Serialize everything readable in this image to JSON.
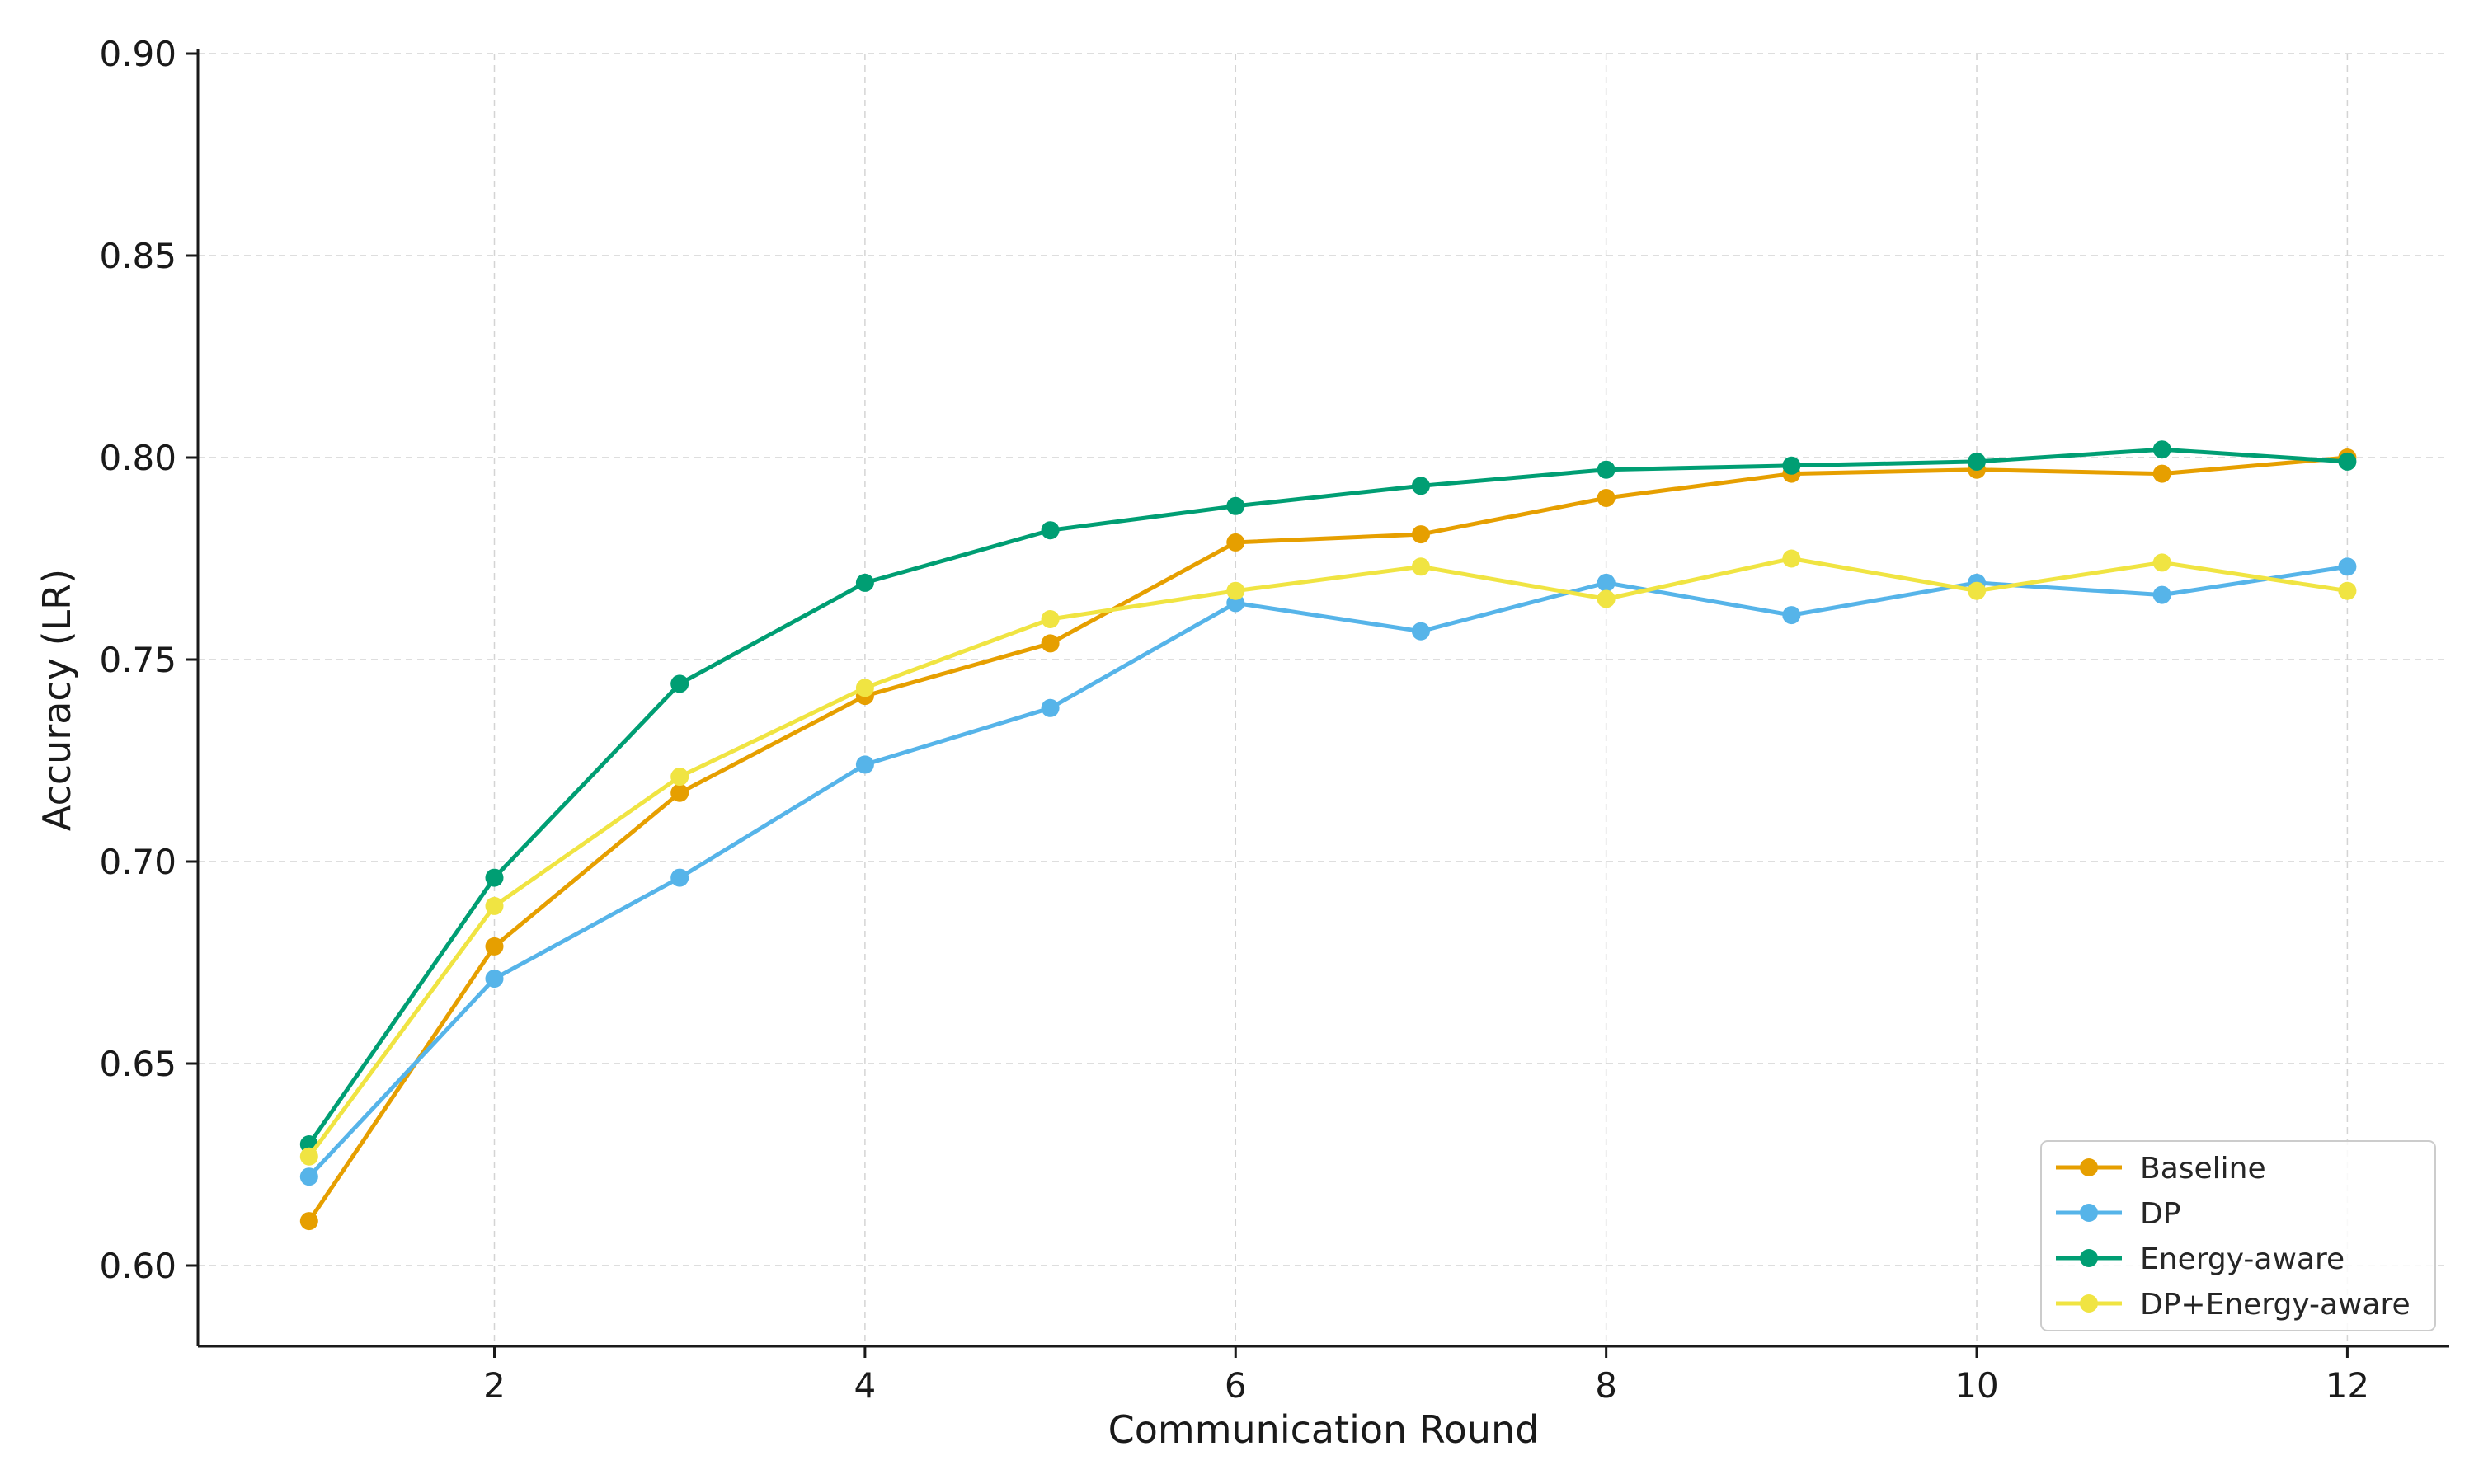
{
  "chart_data": {
    "type": "line",
    "title": "",
    "xlabel": "Communication Round",
    "ylabel": "Accuracy (LR)",
    "xlim": [
      0.4,
      12.55
    ],
    "ylim": [
      0.58,
      0.9
    ],
    "x_ticks": [
      2,
      4,
      6,
      8,
      10,
      12
    ],
    "x_tick_labels": [
      "2",
      "4",
      "6",
      "8",
      "10",
      "12"
    ],
    "y_ticks": [
      0.6,
      0.65,
      0.7,
      0.75,
      0.8,
      0.85,
      0.9
    ],
    "y_tick_labels": [
      "0.60",
      "0.65",
      "0.70",
      "0.75",
      "0.80",
      "0.85",
      "0.90"
    ],
    "grid": true,
    "legend_position": "bottom-right",
    "x": [
      1,
      2,
      3,
      4,
      5,
      6,
      7,
      8,
      9,
      10,
      11,
      12
    ],
    "series": [
      {
        "name": "Baseline",
        "color": "#E69F00",
        "values": [
          0.611,
          0.679,
          0.717,
          0.741,
          0.754,
          0.779,
          0.781,
          0.79,
          0.796,
          0.797,
          0.796,
          0.8
        ]
      },
      {
        "name": "DP",
        "color": "#56B4E9",
        "values": [
          0.622,
          0.671,
          0.696,
          0.724,
          0.738,
          0.764,
          0.757,
          0.769,
          0.761,
          0.769,
          0.766,
          0.773
        ]
      },
      {
        "name": "Energy-aware",
        "color": "#009E73",
        "values": [
          0.63,
          0.696,
          0.744,
          0.769,
          0.782,
          0.788,
          0.793,
          0.797,
          0.798,
          0.799,
          0.802,
          0.799
        ]
      },
      {
        "name": "DP+Energy-aware",
        "color": "#F0E442",
        "values": [
          0.627,
          0.689,
          0.721,
          0.743,
          0.76,
          0.767,
          0.773,
          0.765,
          0.775,
          0.767,
          0.774,
          0.767
        ]
      }
    ]
  }
}
